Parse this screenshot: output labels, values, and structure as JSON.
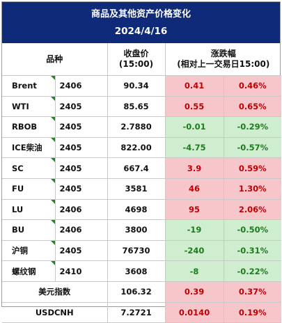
{
  "title": "商品及其他资产价格变化",
  "date": "2024/4/16",
  "headers": {
    "variety": "品种",
    "close_line1": "收盘价",
    "close_line2": "(15:00)",
    "change_line1": "涨跌幅",
    "change_line2": "(相对上一交易日15:00)"
  },
  "rows": [
    {
      "name": "Brent",
      "month": "2406",
      "close": "90.34",
      "chg": "0.41",
      "pct": "0.46%",
      "dir": "up"
    },
    {
      "name": "WTI",
      "month": "2405",
      "close": "85.65",
      "chg": "0.55",
      "pct": "0.65%",
      "dir": "up"
    },
    {
      "name": "RBOB",
      "month": "2405",
      "close": "2.7880",
      "chg": "-0.01",
      "pct": "-0.29%",
      "dir": "down"
    },
    {
      "name": "ICE柴油",
      "month": "2405",
      "close": "822.00",
      "chg": "-4.75",
      "pct": "-0.57%",
      "dir": "down"
    },
    {
      "name": "SC",
      "month": "2405",
      "close": "667.4",
      "chg": "3.9",
      "pct": "0.59%",
      "dir": "up"
    },
    {
      "name": "FU",
      "month": "2405",
      "close": "3581",
      "chg": "46",
      "pct": "1.30%",
      "dir": "up"
    },
    {
      "name": "LU",
      "month": "2406",
      "close": "4698",
      "chg": "95",
      "pct": "2.06%",
      "dir": "up"
    },
    {
      "name": "BU",
      "month": "2406",
      "close": "3800",
      "chg": "-19",
      "pct": "-0.50%",
      "dir": "down"
    },
    {
      "name": "沪铜",
      "month": "2405",
      "close": "76730",
      "chg": "-240",
      "pct": "-0.31%",
      "dir": "down"
    },
    {
      "name": "螺纹钢",
      "month": "2410",
      "close": "3608",
      "chg": "-8",
      "pct": "-0.22%",
      "dir": "down"
    },
    {
      "name": "美元指数",
      "month": "",
      "close": "106.32",
      "chg": "0.39",
      "pct": "0.37%",
      "dir": "up"
    },
    {
      "name": "USDCNH",
      "month": "",
      "close": "7.2721",
      "chg": "0.0140",
      "pct": "0.19%",
      "dir": "up"
    }
  ],
  "colors": {
    "header_bg": "#0e2a78",
    "up_bg": "#f7c6cb",
    "up_text": "#c00000",
    "down_bg": "#cfeecf",
    "down_text": "#1e7a1e"
  }
}
